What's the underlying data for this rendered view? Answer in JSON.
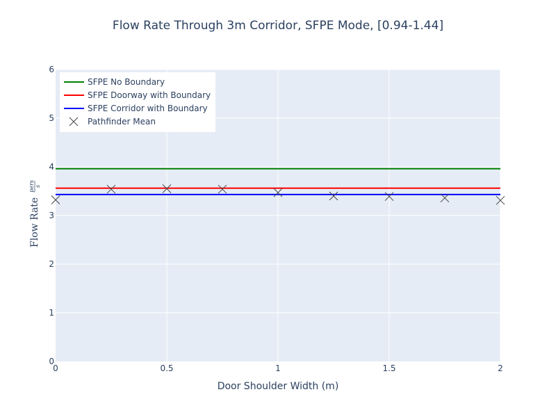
{
  "chart_data": {
    "type": "line",
    "title": "Flow Rate Through 3m Corridor, SFPE Mode, [0.94-1.44]",
    "xlabel": "Door Shoulder Width (m)",
    "ylabel": "Flow Rate",
    "ylabel_frac_num": "pers",
    "ylabel_frac_den": "s",
    "xlim": [
      0,
      2
    ],
    "ylim": [
      0,
      6
    ],
    "x_ticks": [
      0,
      0.5,
      1,
      1.5,
      2
    ],
    "x_tick_labels": [
      "0",
      "0.5",
      "1",
      "1.5",
      "2"
    ],
    "y_ticks": [
      0,
      1,
      2,
      3,
      4,
      5,
      6
    ],
    "y_tick_labels": [
      "0",
      "1",
      "2",
      "3",
      "4",
      "5",
      "6"
    ],
    "grid": true,
    "legend_position": "top-left",
    "series": [
      {
        "name": "SFPE No Boundary",
        "mode": "line",
        "color": "#008000",
        "x": [
          0,
          2
        ],
        "y": [
          3.96,
          3.96
        ]
      },
      {
        "name": "SFPE Doorway with Boundary",
        "mode": "line",
        "color": "#ff0000",
        "x": [
          0,
          2
        ],
        "y": [
          3.56,
          3.56
        ]
      },
      {
        "name": "SFPE Corridor with Boundary",
        "mode": "line",
        "color": "#0000ff",
        "x": [
          0,
          2
        ],
        "y": [
          3.43,
          3.43
        ]
      },
      {
        "name": "Pathfinder Mean",
        "mode": "markers",
        "marker": "x-thin",
        "color": "#444444",
        "x": [
          0,
          0.25,
          0.5,
          0.75,
          1,
          1.25,
          1.5,
          1.75,
          2
        ],
        "y": [
          3.32,
          3.54,
          3.55,
          3.54,
          3.47,
          3.4,
          3.39,
          3.36,
          3.31
        ]
      }
    ]
  }
}
